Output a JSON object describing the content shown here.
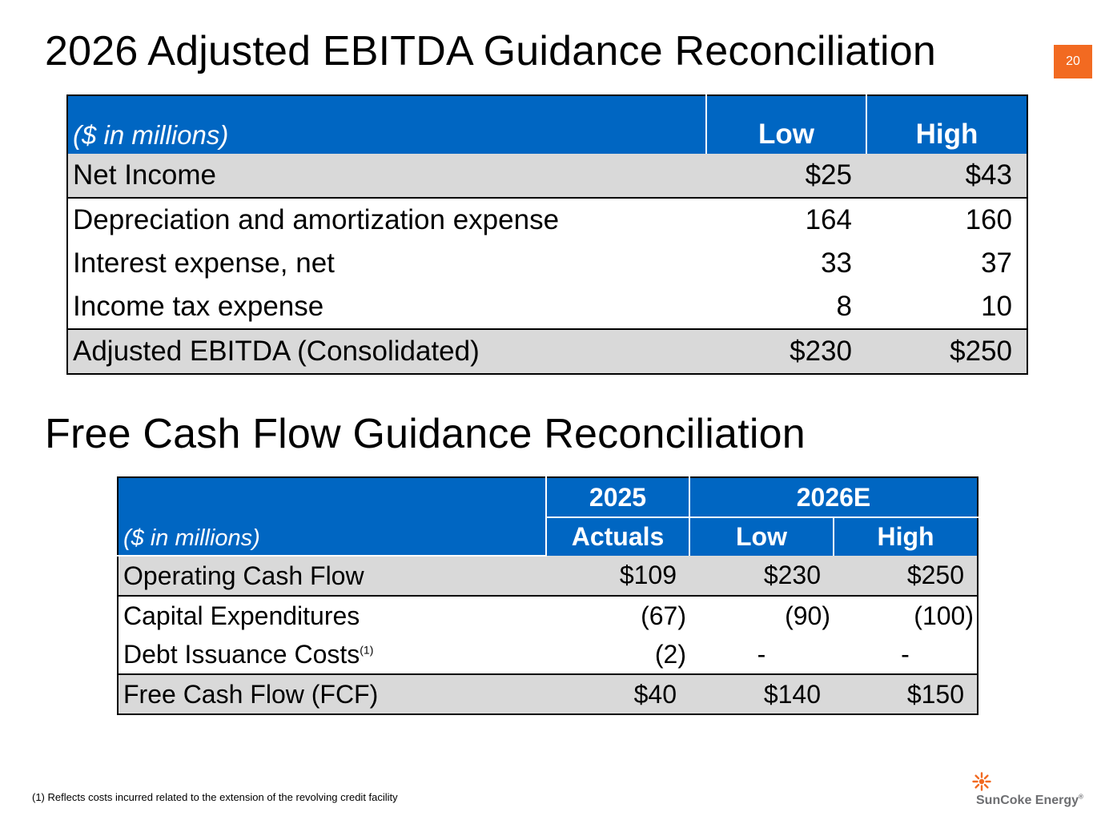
{
  "page_number": "20",
  "ebitda": {
    "title": "2026 Adjusted EBITDA Guidance Reconciliation",
    "header": {
      "label": "($ in millions)",
      "low": "Low",
      "high": "High"
    },
    "rows": [
      {
        "label": "Net Income",
        "low": "$25",
        "high": "$43"
      },
      {
        "label": "Depreciation and amortization expense",
        "low": "164",
        "high": "160"
      },
      {
        "label": "Interest expense, net",
        "low": "33",
        "high": "37"
      },
      {
        "label": "Income tax expense",
        "low": "8",
        "high": "10"
      },
      {
        "label": "Adjusted EBITDA (Consolidated)",
        "low": "$230",
        "high": "$250"
      }
    ]
  },
  "fcf": {
    "title": "Free Cash Flow Guidance Reconciliation",
    "header": {
      "label": "($ in millions)",
      "year_2025": "2025",
      "year_2026": "2026E",
      "actuals": "Actuals",
      "low": "Low",
      "high": "High"
    },
    "rows": [
      {
        "label": "Operating Cash Flow",
        "actuals": "$109",
        "low": "$230",
        "high": "$250"
      },
      {
        "label": "Capital Expenditures",
        "actuals": "(67)",
        "low": "(90)",
        "high": "(100)"
      },
      {
        "label": "Debt Issuance Costs",
        "footnote_ref": "(1)",
        "actuals": "(2)",
        "low": "-",
        "high": "-"
      },
      {
        "label": "Free Cash Flow (FCF)",
        "actuals": "$40",
        "low": "$140",
        "high": "$150"
      }
    ]
  },
  "footnote": "(1)  Reflects costs incurred related to the extension of the revolving credit facility",
  "logo": {
    "text": "SunCoke Energy",
    "mark": "®",
    "color": "#f26a21"
  },
  "colors": {
    "header_blue": "#0066c2",
    "shade_gray": "#d9d9d9",
    "accent_orange": "#f26a21"
  }
}
